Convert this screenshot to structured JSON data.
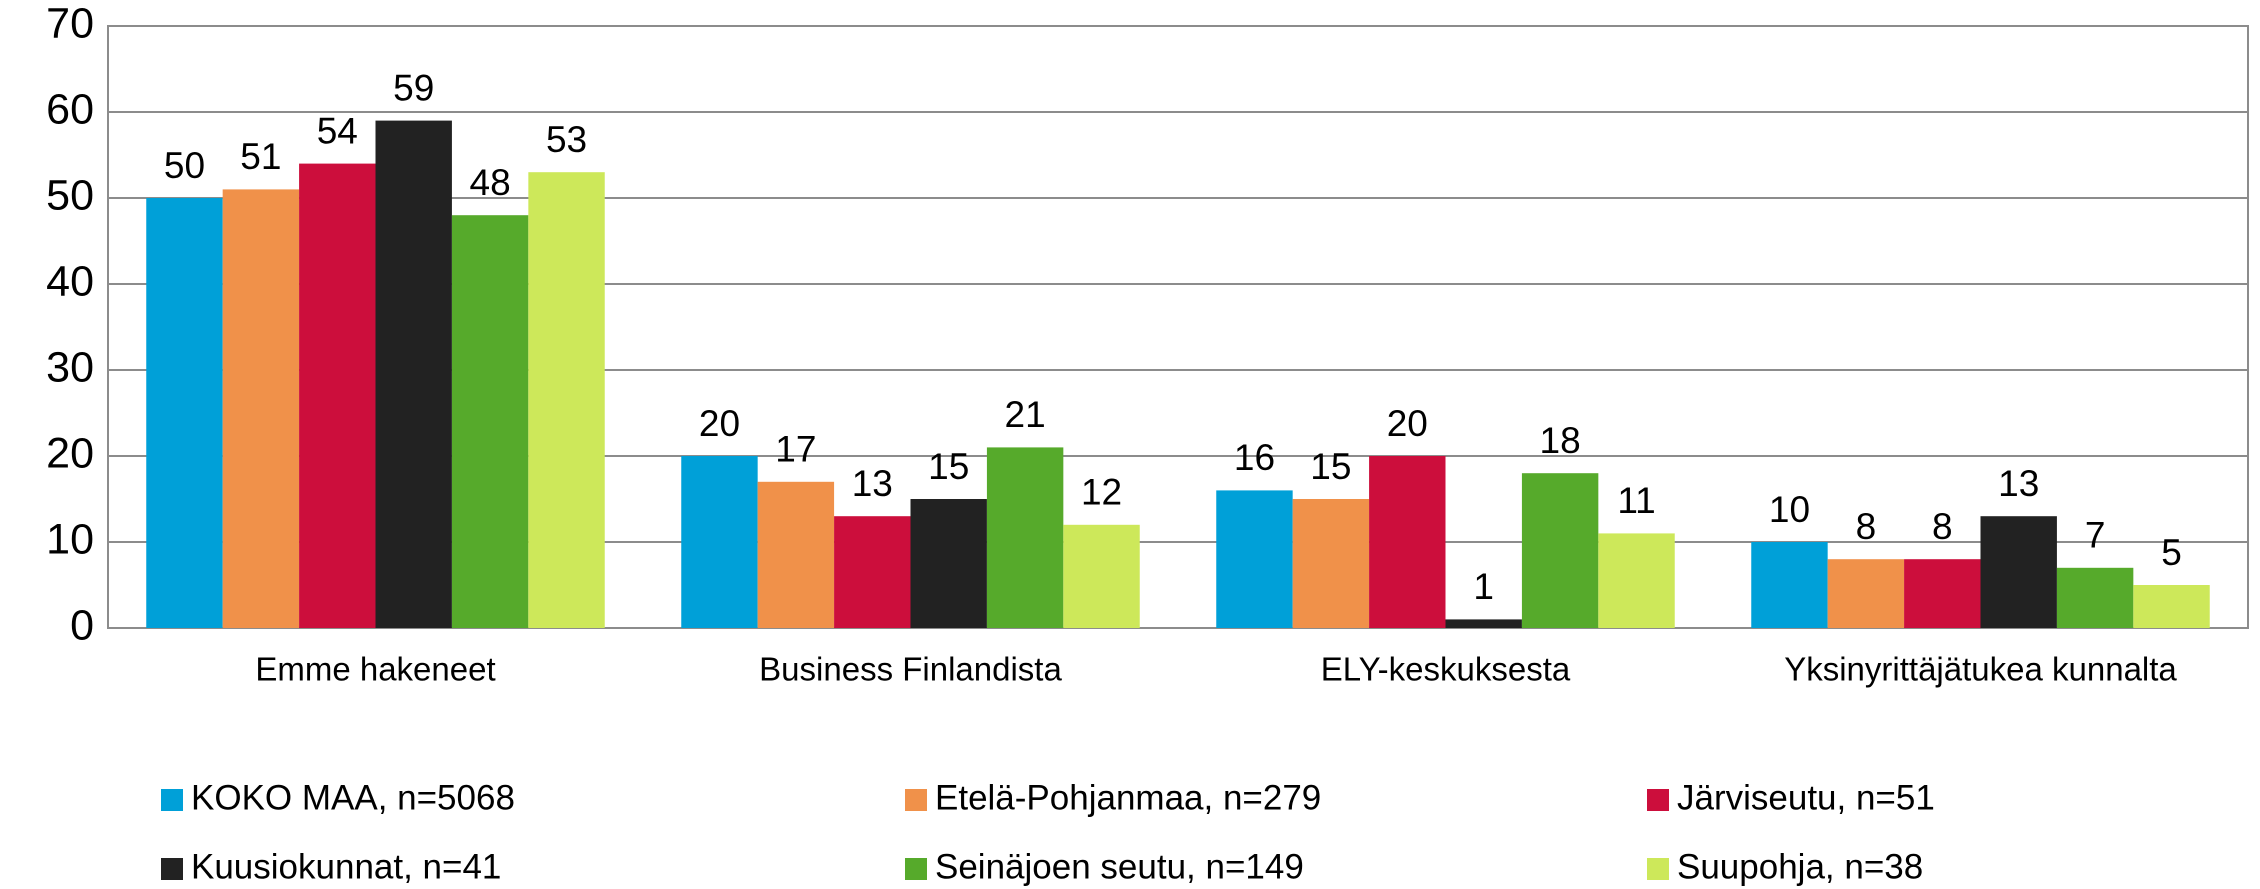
{
  "chart_data": {
    "type": "bar",
    "categories": [
      "Emme hakeneet",
      "Business Finlandista",
      "ELY-keskuksesta",
      "Yksinyrittäjätukea kunnalta"
    ],
    "series": [
      {
        "name": "KOKO MAA, n=5068",
        "color": "#00a0d8",
        "values": [
          50,
          20,
          16,
          10
        ]
      },
      {
        "name": "Etelä-Pohjanmaa, n=279",
        "color": "#f0914a",
        "values": [
          51,
          17,
          15,
          8
        ]
      },
      {
        "name": "Järviseutu, n=51",
        "color": "#cc0e3c",
        "values": [
          54,
          13,
          20,
          8
        ]
      },
      {
        "name": "Kuusiokunnat, n=41",
        "color": "#222222",
        "values": [
          59,
          15,
          1,
          13
        ]
      },
      {
        "name": "Seinäjoen seutu, n=149",
        "color": "#56aa2b",
        "values": [
          48,
          21,
          18,
          7
        ]
      },
      {
        "name": "Suupohja, n=38",
        "color": "#cde85a",
        "values": [
          53,
          12,
          11,
          5
        ]
      }
    ],
    "ylim": [
      0,
      70
    ],
    "yticks": [
      0,
      10,
      20,
      30,
      40,
      50,
      60,
      70
    ],
    "grid": true,
    "legend": "bottom"
  }
}
